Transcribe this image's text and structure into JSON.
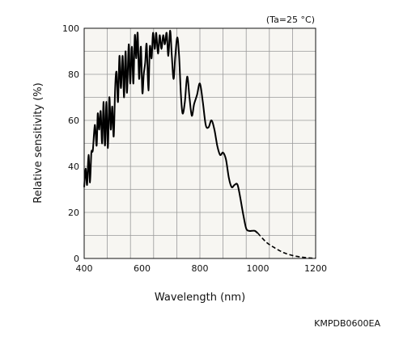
{
  "chart_data": {
    "type": "line",
    "condition_note": "(Ta=25 °C)",
    "xlabel": "Wavelength (nm)",
    "ylabel": "Relative sensitivity (%)",
    "xlim": [
      400,
      1200
    ],
    "ylim": [
      0,
      100
    ],
    "x_ticks": [
      400,
      600,
      800,
      1000,
      1200
    ],
    "y_ticks": [
      0,
      20,
      40,
      60,
      80,
      100
    ],
    "grid": true,
    "figure_code": "KMPDB0600EA",
    "series": [
      {
        "style": "solid",
        "x": [
          400,
          405,
          410,
          415,
          420,
          425,
          430,
          437,
          443,
          447,
          452,
          457,
          462,
          467,
          472,
          477,
          482,
          487,
          492,
          497,
          502,
          507,
          512,
          517,
          522,
          527,
          533,
          538,
          543,
          548,
          554,
          559,
          565,
          570,
          575,
          580,
          585,
          590,
          596,
          601,
          606,
          611,
          616,
          622,
          627,
          633,
          638,
          644,
          649,
          655,
          661,
          667,
          673,
          679,
          685,
          691,
          697,
          703,
          709,
          715,
          722,
          728,
          734,
          740,
          748,
          756,
          764,
          772,
          780,
          790,
          800,
          810,
          820,
          830,
          840,
          850,
          860,
          870,
          880,
          890,
          900,
          910,
          920,
          930,
          940,
          950,
          960,
          970,
          980,
          990,
          1000
        ],
        "y": [
          31,
          39,
          32,
          45,
          33,
          46,
          47,
          58,
          49,
          63,
          56,
          64,
          50,
          68,
          49,
          68,
          48,
          70,
          56,
          66,
          53,
          74,
          81,
          68,
          88,
          74,
          88,
          70,
          90,
          72,
          93,
          76,
          92,
          76,
          97,
          87,
          98,
          78,
          92,
          72,
          80,
          85,
          93,
          73,
          92,
          87,
          98,
          91,
          98,
          89,
          97,
          91,
          97,
          93,
          98,
          88,
          99,
          88,
          78,
          88,
          96,
          88,
          72,
          63,
          68,
          79,
          70,
          62,
          67,
          71,
          76,
          68,
          58,
          57,
          60,
          56,
          49,
          45,
          46,
          43,
          35,
          31,
          32,
          32,
          26,
          19,
          13,
          12,
          12,
          12,
          11
        ]
      },
      {
        "style": "dashed",
        "x": [
          1000,
          1030,
          1060,
          1090,
          1120,
          1150,
          1180,
          1200
        ],
        "y": [
          11,
          7,
          4.5,
          2.5,
          1.3,
          0.6,
          0.2,
          0.1
        ]
      }
    ]
  }
}
